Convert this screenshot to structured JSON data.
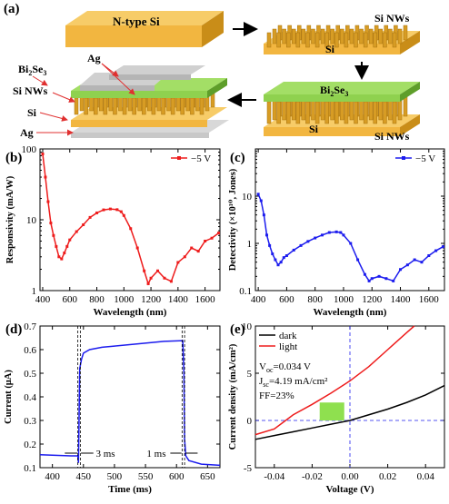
{
  "panels": {
    "a": {
      "letter": "(a)",
      "label_ntype": "N-type Si",
      "label_si_nws_top": "Si NWs",
      "label_si_top": "Si",
      "label_ag_top": "Ag",
      "label_bi2se3_left_main": "Bi",
      "label_bi2se3_left_sub": "2",
      "label_bi2se3_left_tail": "Se",
      "label_bi2se3_left_sub2": "3",
      "label_si_nws_left": "Si NWs",
      "label_si_left": "Si",
      "label_ag_bottom": "Ag",
      "label_bi2se3_right_main": "Bi",
      "label_bi2se3_right_sub": "2",
      "label_bi2se3_right_tail": "Se",
      "label_bi2se3_right_sub2": "3",
      "label_si_right": "Si",
      "label_si_nws_right": "Si NWs",
      "colors": {
        "si": "#f2b640",
        "si_dark": "#c98d18",
        "bi2se3": "#8fd14f",
        "bi2se3_dark": "#5e9e2a",
        "ag": "#c8c8c8",
        "ag_dark": "#8a8a8a",
        "arrow": "#e03030"
      }
    },
    "b": {
      "letter": "(b)"
    },
    "c": {
      "letter": "(c)"
    },
    "d": {
      "letter": "(d)"
    },
    "e": {
      "letter": "(e)"
    }
  },
  "chart_data": [
    {
      "id": "b",
      "type": "line",
      "xlabel": "Wavelength (nm)",
      "ylabel": "Responsivity (mA/W)",
      "xlim": [
        380,
        1710
      ],
      "ylim": [
        1,
        100
      ],
      "yscale": "log",
      "xticks": [
        400,
        600,
        800,
        1000,
        1200,
        1400,
        1600
      ],
      "yticks": [
        1,
        10,
        100
      ],
      "legend": "top-right",
      "color": "#ee1c1c",
      "series": [
        {
          "name": "−5 V",
          "x": [
            400,
            420,
            440,
            460,
            480,
            500,
            520,
            540,
            560,
            580,
            600,
            650,
            700,
            750,
            800,
            850,
            900,
            950,
            980,
            1000,
            1050,
            1100,
            1150,
            1180,
            1200,
            1250,
            1300,
            1350,
            1400,
            1450,
            1500,
            1550,
            1600,
            1650,
            1700
          ],
          "y": [
            85,
            40,
            18,
            9,
            6,
            4.2,
            3.0,
            2.8,
            3.4,
            4.2,
            5.2,
            6.8,
            8.5,
            10.8,
            12.5,
            13.8,
            14.2,
            13.9,
            13.0,
            11.5,
            7.5,
            4.0,
            1.9,
            1.25,
            1.5,
            1.9,
            1.5,
            1.35,
            2.5,
            3.0,
            4.0,
            3.6,
            5.0,
            5.5,
            6.5
          ]
        }
      ]
    },
    {
      "id": "c",
      "type": "line",
      "xlabel": "Wavelength (nm)",
      "ylabel": "Detectivity (×10¹⁰, Jones)",
      "xlim": [
        380,
        1710
      ],
      "ylim": [
        0.1,
        100
      ],
      "yscale": "log",
      "xticks": [
        400,
        600,
        800,
        1000,
        1200,
        1400,
        1600
      ],
      "yticks": [
        0.1,
        1,
        10
      ],
      "legend": "top-right",
      "color": "#1c1cee",
      "series": [
        {
          "name": "−5 V",
          "x": [
            400,
            420,
            440,
            460,
            480,
            500,
            520,
            540,
            560,
            580,
            600,
            650,
            700,
            750,
            800,
            850,
            900,
            950,
            980,
            1000,
            1050,
            1100,
            1150,
            1180,
            1200,
            1250,
            1300,
            1350,
            1400,
            1450,
            1500,
            1550,
            1600,
            1650,
            1700
          ],
          "y": [
            11,
            8,
            4,
            1.5,
            0.9,
            0.6,
            0.45,
            0.35,
            0.4,
            0.5,
            0.55,
            0.72,
            0.9,
            1.1,
            1.3,
            1.5,
            1.7,
            1.75,
            1.7,
            1.5,
            1.0,
            0.45,
            0.22,
            0.16,
            0.18,
            0.2,
            0.18,
            0.16,
            0.28,
            0.35,
            0.45,
            0.4,
            0.55,
            0.7,
            0.85
          ]
        }
      ]
    },
    {
      "id": "d",
      "type": "line",
      "xlabel": "Time (ms)",
      "ylabel": "Current (μA)",
      "xlim": [
        380,
        670
      ],
      "ylim": [
        0.1,
        0.7
      ],
      "xticks": [
        400,
        450,
        500,
        550,
        600,
        650
      ],
      "yticks": [
        0.1,
        0.2,
        0.3,
        0.4,
        0.5,
        0.6,
        0.7
      ],
      "color": "#1c1cee",
      "annotations": [
        "3 ms",
        "1 ms"
      ],
      "series": [
        {
          "name": "",
          "x": [
            380,
            430,
            441,
            442,
            444,
            447,
            450,
            460,
            480,
            500,
            540,
            580,
            610,
            612,
            613,
            615,
            620,
            640,
            670
          ],
          "y": [
            0.155,
            0.15,
            0.15,
            0.12,
            0.52,
            0.56,
            0.585,
            0.6,
            0.61,
            0.615,
            0.625,
            0.635,
            0.638,
            0.5,
            0.22,
            0.15,
            0.13,
            0.115,
            0.11
          ]
        }
      ]
    },
    {
      "id": "e",
      "type": "line",
      "xlabel": "Voltage (V)",
      "ylabel": "Current density (mA/cm²)",
      "xlim": [
        -0.05,
        0.05
      ],
      "ylim": [
        -5,
        10
      ],
      "xticks": [
        -0.04,
        -0.02,
        0.0,
        0.02,
        0.04
      ],
      "yticks": [
        -5,
        0,
        5,
        10
      ],
      "legend": "top-left",
      "annotations": {
        "voc_main": "V",
        "voc_sub": "oc",
        "voc_rest": "=0.034 V",
        "jsc_main": "J",
        "jsc_sub": "sc",
        "jsc_rest": "=4.19 mA/cm²",
        "ff": "FF=23%"
      },
      "series": [
        {
          "name": "dark",
          "color": "#000000",
          "x": [
            -0.05,
            -0.04,
            -0.03,
            -0.02,
            -0.01,
            0.0,
            0.01,
            0.02,
            0.03,
            0.04,
            0.05
          ],
          "y": [
            -2.0,
            -1.6,
            -1.2,
            -0.8,
            -0.4,
            0.0,
            0.6,
            1.2,
            1.9,
            2.7,
            3.7
          ]
        },
        {
          "name": "light",
          "color": "#ee1c1c",
          "x": [
            -0.05,
            -0.04,
            -0.034,
            -0.03,
            -0.02,
            -0.01,
            0.0,
            0.01,
            0.02,
            0.03,
            0.034
          ],
          "y": [
            -1.5,
            -0.9,
            0.0,
            0.6,
            1.7,
            2.9,
            4.19,
            5.7,
            7.5,
            9.3,
            10.0
          ]
        }
      ]
    }
  ]
}
